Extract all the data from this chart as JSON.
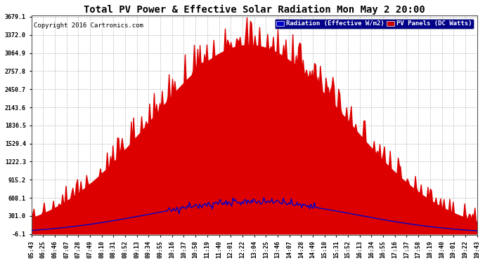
{
  "title": "Total PV Power & Effective Solar Radiation Mon May 2 20:00",
  "copyright": "Copyright 2016 Cartronics.com",
  "legend_radiation": "Radiation (Effective W/m2)",
  "legend_pv": "PV Panels (DC Watts)",
  "yticks": [
    -6.1,
    301.0,
    608.1,
    915.2,
    1222.3,
    1529.4,
    1836.5,
    2143.6,
    2450.7,
    2757.8,
    3064.9,
    3372.0,
    3679.1
  ],
  "ymin": -6.1,
  "ymax": 3679.1,
  "bg_color": "#ffffff",
  "plot_bg_color": "#ffffff",
  "grid_color": "#aaaaaa",
  "title_color": "#000000",
  "red_color": "#dd0000",
  "blue_color": "#0000cc",
  "xtick_labels": [
    "05:43",
    "06:25",
    "06:46",
    "07:07",
    "07:28",
    "07:49",
    "08:10",
    "08:31",
    "08:52",
    "09:13",
    "09:34",
    "09:55",
    "10:16",
    "10:37",
    "10:58",
    "11:19",
    "11:40",
    "12:01",
    "12:22",
    "13:04",
    "13:25",
    "13:46",
    "14:07",
    "14:28",
    "14:49",
    "15:10",
    "15:31",
    "15:52",
    "16:13",
    "16:34",
    "16:55",
    "17:16",
    "17:37",
    "17:58",
    "18:19",
    "18:40",
    "19:01",
    "19:22",
    "19:43"
  ]
}
